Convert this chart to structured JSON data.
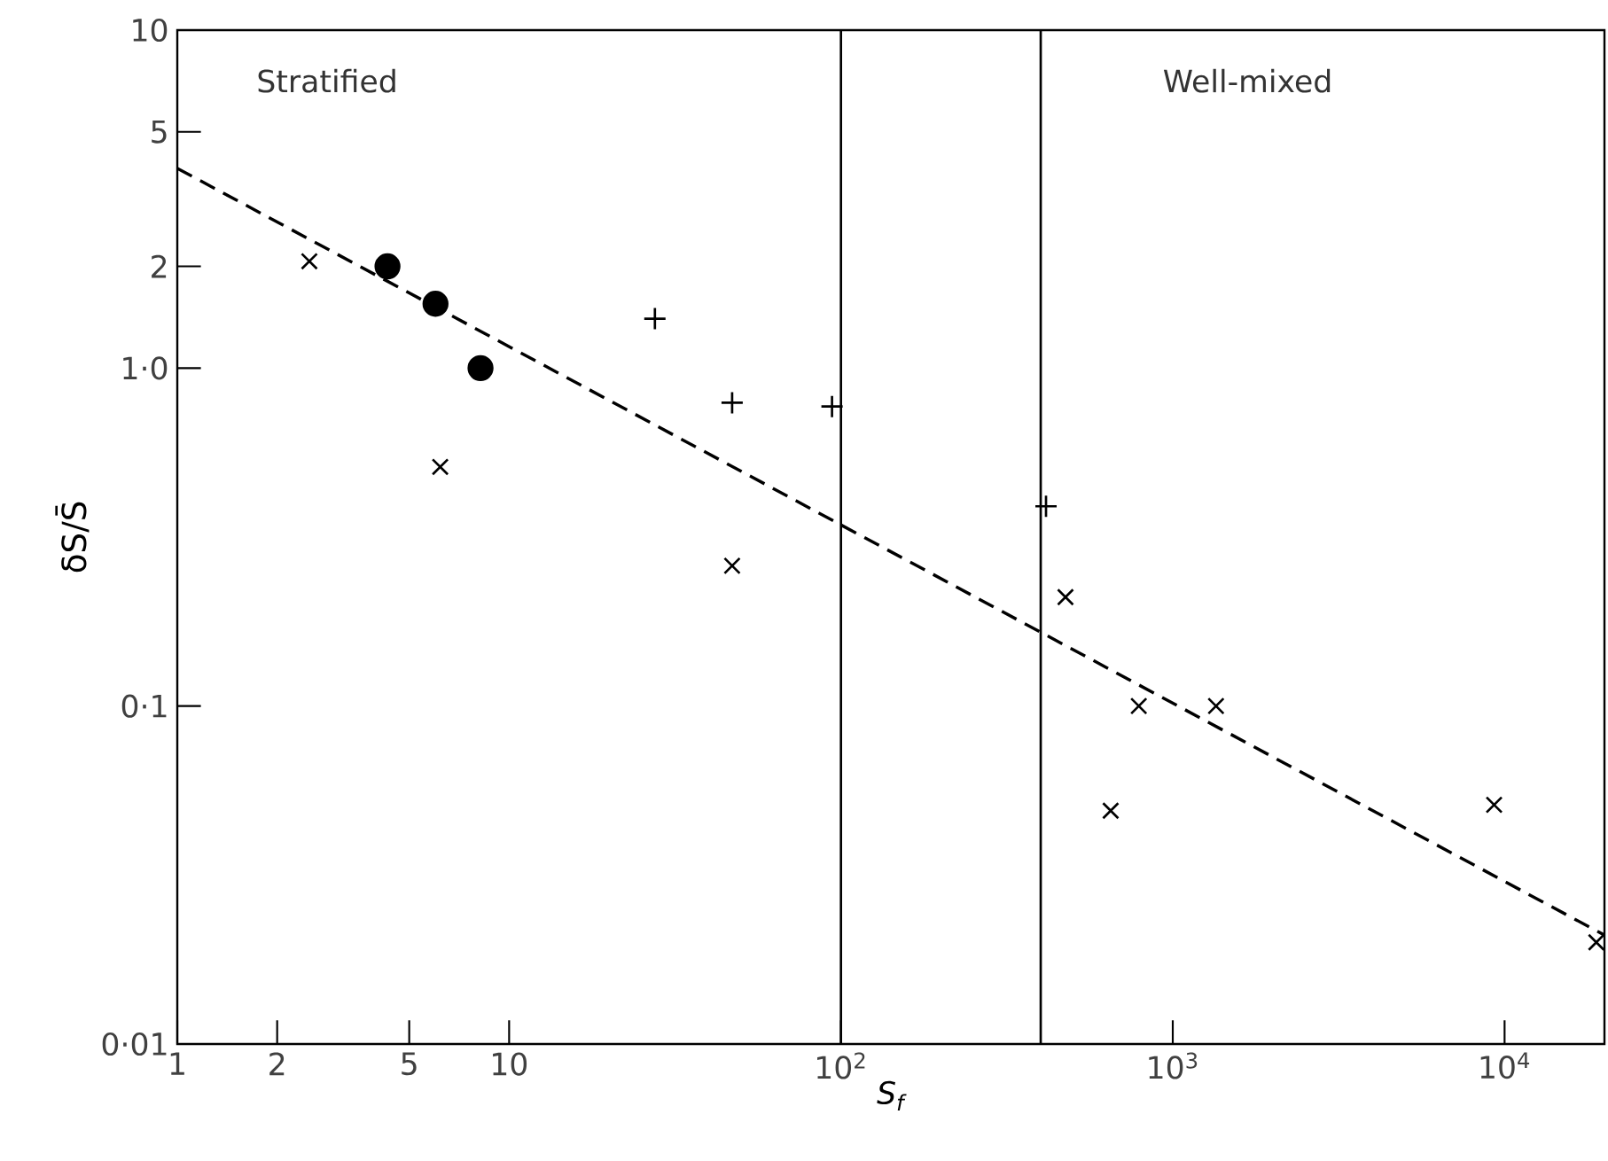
{
  "chart_data": {
    "type": "scatter",
    "xlabel": "S$_{f}$",
    "ylabel": "δS/S̄",
    "log": "xy",
    "xlim": [
      1,
      20000
    ],
    "ylim": [
      0.01,
      10
    ],
    "xticks": [
      1,
      2,
      5,
      10,
      {
        "value": 100,
        "label": "10$^{2}$"
      },
      {
        "value": 1000,
        "label": "10$^{3}$"
      },
      {
        "value": 10000,
        "label": "10$^{4}$"
      }
    ],
    "yticks": [
      {
        "value": 0.01,
        "label": "0·01"
      },
      {
        "value": 0.1,
        "label": "0·1"
      },
      {
        "value": 1,
        "label": "1·0"
      },
      2,
      5,
      10
    ],
    "grid": false,
    "series": [
      {
        "type": "scatter",
        "marker": "cross",
        "color": "#000000",
        "x": [
          2.5,
          6.2,
          47,
          475,
          790,
          650,
          1350,
          9300,
          18900
        ],
        "values": [
          2.07,
          0.51,
          0.26,
          0.21,
          0.1,
          0.049,
          0.1,
          0.051,
          0.02
        ]
      },
      {
        "type": "scatter",
        "marker": "circle",
        "color": "#000000",
        "x": [
          4.3,
          6.0,
          8.2
        ],
        "values": [
          2.0,
          1.55,
          1.0
        ]
      },
      {
        "type": "scatter",
        "marker": "plus",
        "color": "#000000",
        "x": [
          27.5,
          47,
          94,
          415
        ],
        "values": [
          1.4,
          0.79,
          0.77,
          0.39
        ]
      },
      {
        "type": "line",
        "line_style": "dashed",
        "marker": "none",
        "color": "#000000",
        "x": [
          1,
          20000
        ],
        "values": [
          3.9,
          0.021
        ]
      }
    ],
    "ref_lines": [
      {
        "axis": "x",
        "value": 100,
        "color": "#000000"
      },
      {
        "axis": "x",
        "value": 400,
        "color": "#000000"
      }
    ],
    "annotations": [
      "Stratified",
      "Well-mixed"
    ]
  }
}
